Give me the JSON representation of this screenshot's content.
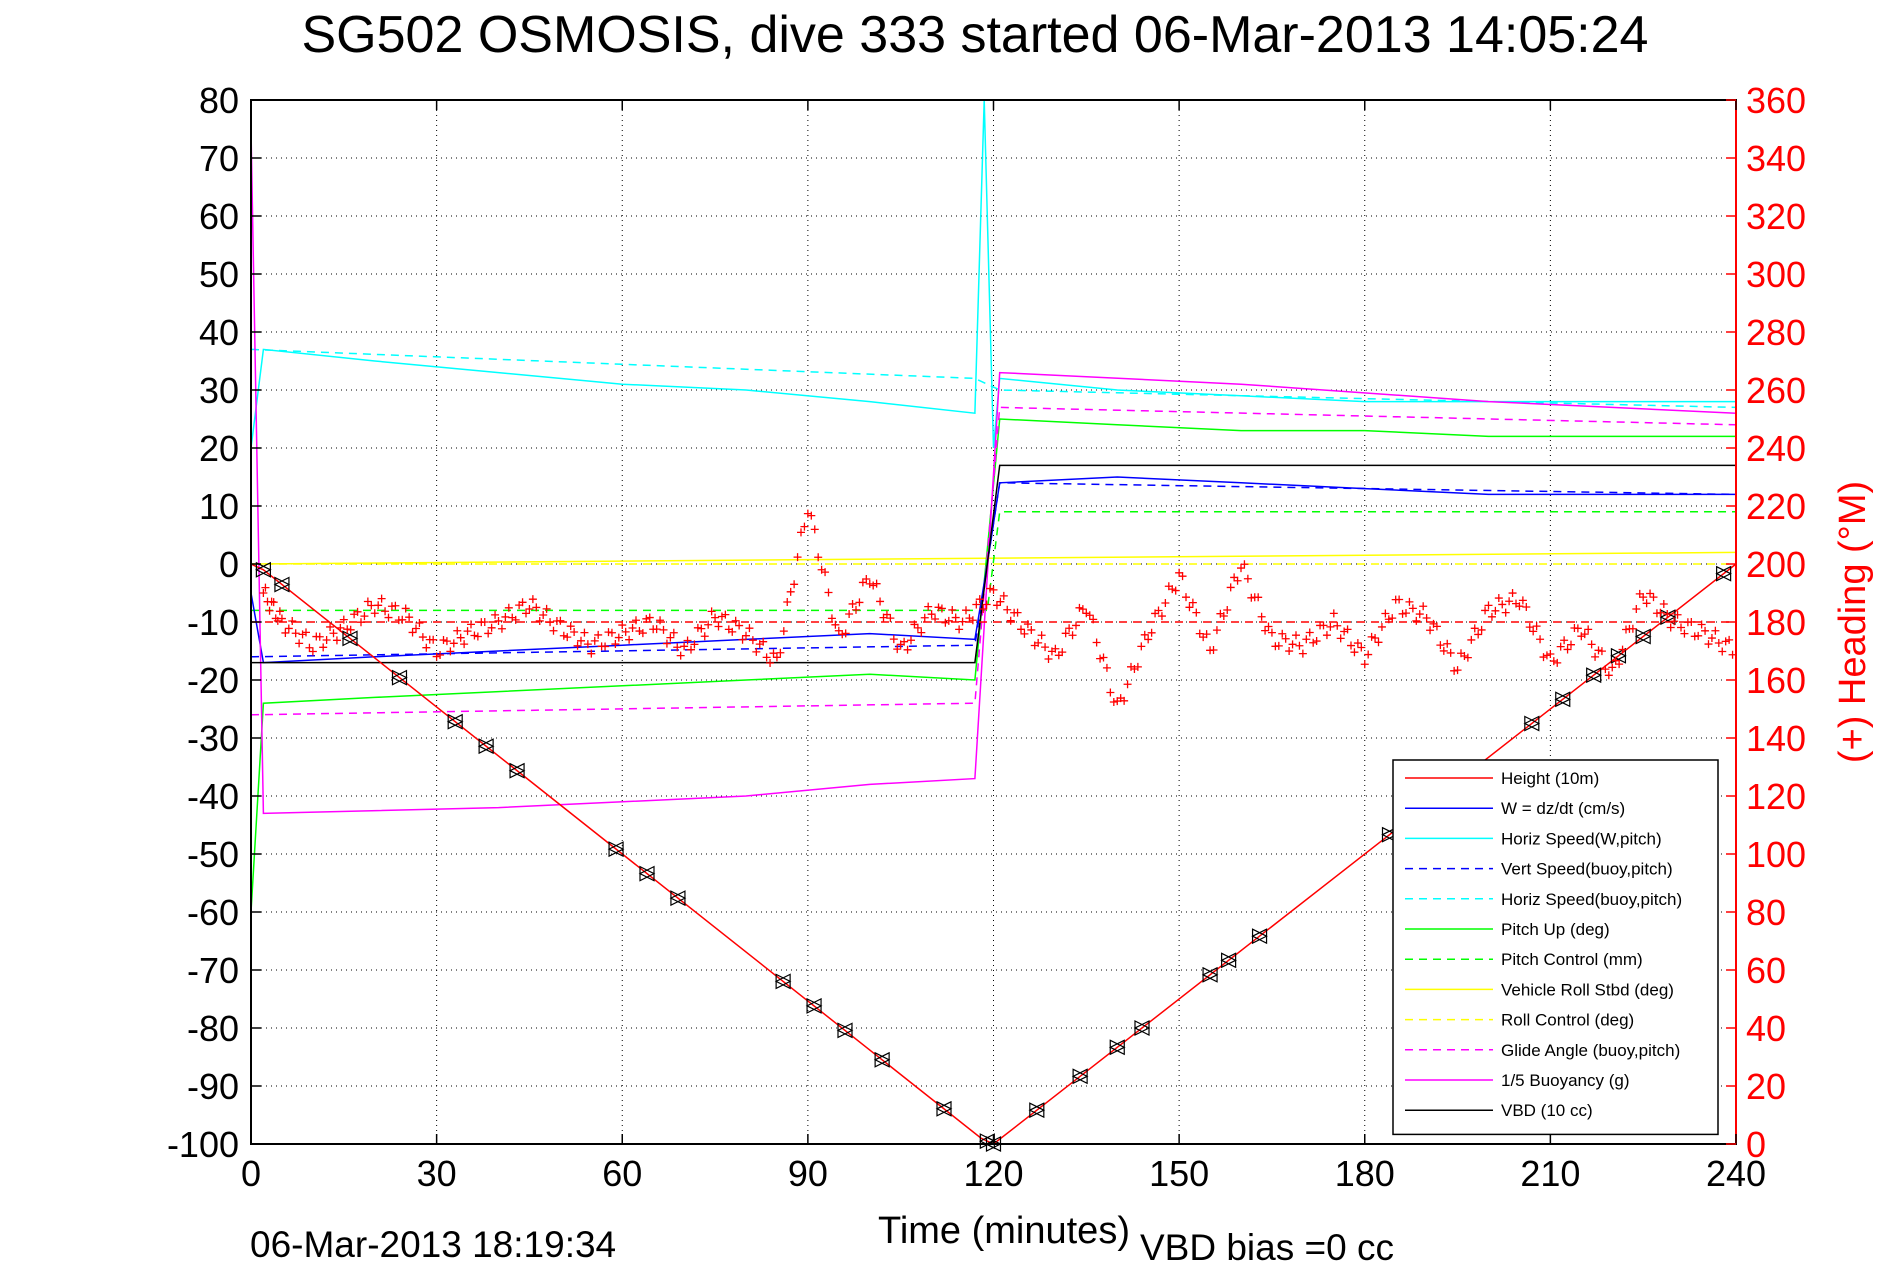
{
  "chart_data": {
    "type": "line",
    "title": "SG502 OSMOSIS, dive 333 started 06-Mar-2013 14:05:24",
    "xlabel": "Time (minutes)",
    "ylabel_right": "(+) Heading (°M)",
    "footer_timestamp": "06-Mar-2013 18:19:34",
    "footer_note": "VBD bias =0 cc",
    "xlim": [
      0,
      240
    ],
    "ylim_left": [
      -100,
      80
    ],
    "ylim_right": [
      0,
      360
    ],
    "x_ticks": [
      0,
      30,
      60,
      90,
      120,
      150,
      180,
      210,
      240
    ],
    "x_tick_labels": [
      "0",
      "30",
      "60",
      "90",
      "120",
      "150",
      "180",
      "210",
      "240"
    ],
    "y_ticks_left": [
      80,
      70,
      60,
      50,
      40,
      30,
      20,
      10,
      0,
      -10,
      -20,
      -30,
      -40,
      -50,
      -60,
      -70,
      -80,
      -90,
      -100
    ],
    "y_tick_labels_left": [
      "80",
      "70",
      "60",
      "50",
      "40",
      "30",
      "20",
      "10",
      "0",
      "-10",
      "-20",
      "-30",
      "-40",
      "-50",
      "-60",
      "-70",
      "-80",
      "-90",
      "-100"
    ],
    "y_ticks_right": [
      360,
      340,
      320,
      300,
      280,
      260,
      240,
      220,
      200,
      180,
      160,
      140,
      120,
      100,
      80,
      60,
      40,
      20,
      0
    ],
    "y_tick_labels_right": [
      "360",
      "340",
      "320",
      "300",
      "280",
      "260",
      "240",
      "220",
      "200",
      "180",
      "160",
      "140",
      "120",
      "100",
      "80",
      "60",
      "40",
      "20",
      "0"
    ],
    "grid": true,
    "legend_position": "bottom-right",
    "colors": {
      "height": "#ff0000",
      "w": "#0000ff",
      "horiz_speed": "#00ffff",
      "pitch": "#00ff00",
      "roll": "#ffff00",
      "glide": "#ff00ff",
      "vbd": "#000000",
      "heading": "#ff0000",
      "right_axis": "#ff0000"
    },
    "legend": [
      {
        "label": "Height (10m)",
        "color": "#ff0000",
        "style": "solid"
      },
      {
        "label": "W = dz/dt (cm/s)",
        "color": "#0000ff",
        "style": "solid"
      },
      {
        "label": "Horiz Speed(W,pitch)",
        "color": "#00ffff",
        "style": "solid"
      },
      {
        "label": "Vert Speed(buoy,pitch)",
        "color": "#0000ff",
        "style": "dashed"
      },
      {
        "label": "Horiz Speed(buoy,pitch)",
        "color": "#00ffff",
        "style": "dashed"
      },
      {
        "label": "Pitch Up (deg)",
        "color": "#00ff00",
        "style": "solid"
      },
      {
        "label": "Pitch Control (mm)",
        "color": "#00ff00",
        "style": "dashed"
      },
      {
        "label": "Vehicle Roll Stbd (deg)",
        "color": "#ffff00",
        "style": "solid"
      },
      {
        "label": "Roll Control (deg)",
        "color": "#ffff00",
        "style": "dashed"
      },
      {
        "label": "Glide Angle (buoy,pitch)",
        "color": "#ff00ff",
        "style": "dashed"
      },
      {
        "label": "1/5 Buoyancy (g)",
        "color": "#ff00ff",
        "style": "solid"
      },
      {
        "label": "VBD (10 cc)",
        "color": "#000000",
        "style": "solid"
      }
    ],
    "series": [
      {
        "key": "height",
        "x": [
          0,
          2,
          118,
          120,
          240
        ],
        "y": [
          0,
          -1,
          -99,
          -100,
          0
        ]
      },
      {
        "key": "w_dzdt",
        "x": [
          0,
          2,
          20,
          40,
          60,
          80,
          100,
          117,
          119,
          121,
          140,
          160,
          180,
          200,
          220,
          240
        ],
        "y": [
          -5,
          -17,
          -16,
          -15,
          -14,
          -13,
          -12,
          -13,
          0,
          14,
          15,
          14,
          13,
          12,
          12,
          12
        ]
      },
      {
        "key": "horiz_speed_w_pitch",
        "x": [
          0,
          2,
          20,
          40,
          60,
          80,
          100,
          117,
          118.5,
          120,
          121,
          140,
          160,
          180,
          200,
          220,
          240
        ],
        "y": [
          20,
          37,
          35,
          33,
          31,
          30,
          28,
          26,
          80,
          20,
          32,
          30,
          29,
          28,
          28,
          28,
          28
        ]
      },
      {
        "key": "vert_speed_buoy_pitch",
        "x": [
          0,
          117,
          121,
          240
        ],
        "y": [
          -16,
          -14,
          14,
          12
        ]
      },
      {
        "key": "horiz_speed_buoy_pitch",
        "x": [
          0,
          117,
          121,
          240
        ],
        "y": [
          37,
          32,
          30,
          27
        ]
      },
      {
        "key": "pitch_up",
        "x": [
          0,
          2,
          20,
          40,
          60,
          80,
          100,
          117,
          121,
          140,
          160,
          180,
          200,
          220,
          240
        ],
        "y": [
          -60,
          -24,
          -23,
          -22,
          -21,
          -20,
          -19,
          -20,
          25,
          24,
          23,
          23,
          22,
          22,
          22
        ]
      },
      {
        "key": "pitch_control",
        "x": [
          0,
          119,
          121,
          240
        ],
        "y": [
          -8,
          -8,
          9,
          9
        ]
      },
      {
        "key": "vehicle_roll_stbd",
        "x": [
          0,
          240
        ],
        "y": [
          0,
          2
        ]
      },
      {
        "key": "roll_control",
        "x": [
          0,
          240
        ],
        "y": [
          0,
          0
        ]
      },
      {
        "key": "glide_angle_buoy_pitch",
        "x": [
          0,
          117,
          121,
          240
        ],
        "y": [
          -26,
          -24,
          27,
          24
        ]
      },
      {
        "key": "buoyancy",
        "x": [
          0,
          2,
          40,
          80,
          100,
          117,
          121,
          160,
          200,
          240
        ],
        "y": [
          75,
          -43,
          -42,
          -40,
          -38,
          -37,
          33,
          31,
          28,
          26
        ]
      },
      {
        "key": "vbd",
        "x": [
          0,
          2,
          117,
          121,
          240
        ],
        "y": [
          -17,
          -17,
          -17,
          17,
          17
        ]
      },
      {
        "key": "heading_deg",
        "x": [
          2,
          5,
          10,
          15,
          20,
          25,
          30,
          35,
          40,
          45,
          50,
          55,
          60,
          65,
          70,
          75,
          80,
          85,
          90,
          95,
          100,
          105,
          110,
          115,
          120,
          125,
          130,
          135,
          140,
          145,
          150,
          155,
          160,
          165,
          170,
          175,
          180,
          185,
          190,
          195,
          200,
          205,
          210,
          215,
          220,
          225,
          230,
          235,
          240
        ],
        "y": [
          190,
          180,
          172,
          178,
          186,
          182,
          170,
          176,
          180,
          186,
          178,
          172,
          176,
          180,
          170,
          182,
          176,
          166,
          220,
          174,
          196,
          170,
          184,
          180,
          190,
          178,
          168,
          186,
          150,
          176,
          196,
          170,
          200,
          174,
          172,
          180,
          168,
          186,
          182,
          164,
          184,
          188,
          166,
          178,
          162,
          190,
          180,
          176,
          170
        ]
      }
    ]
  }
}
